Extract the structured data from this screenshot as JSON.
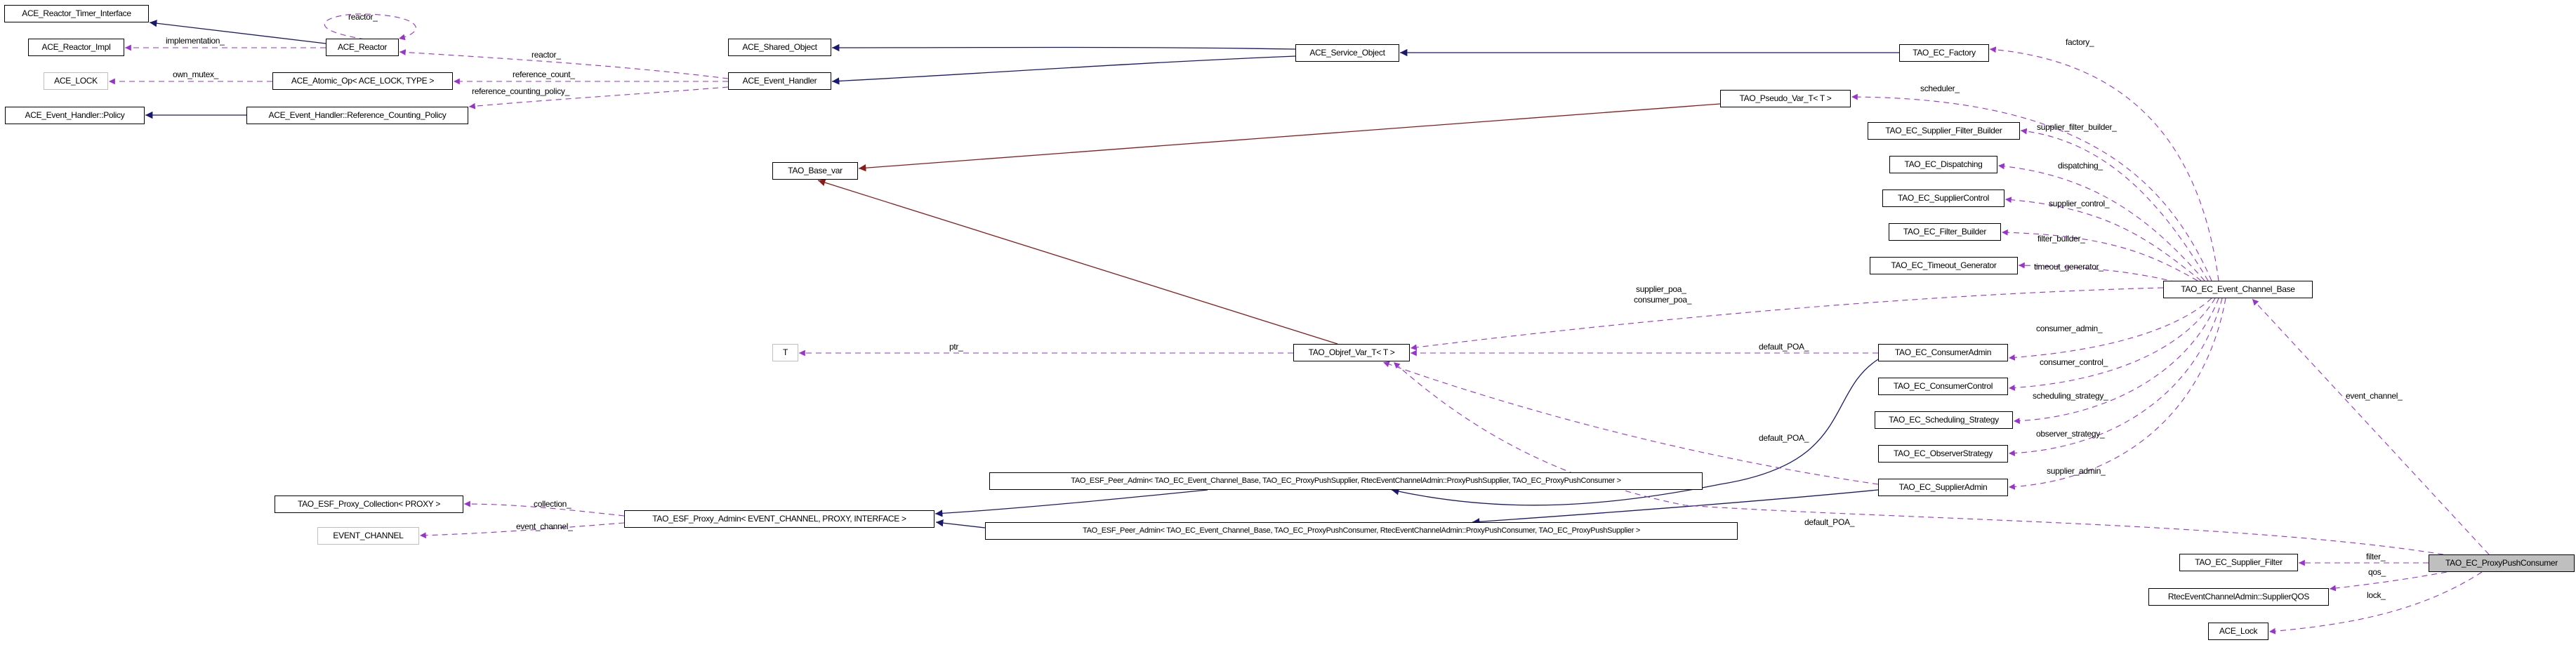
{
  "colors": {
    "inheritance": "#191970",
    "template": "#8b1a1a",
    "usage": "#9a32cd",
    "focus_fill": "#bfbfbf"
  },
  "nodes": {
    "ace_reactor_timer_interface": "ACE_Reactor_Timer_Interface",
    "ace_reactor_impl": "ACE_Reactor_Impl",
    "ace_reactor": "ACE_Reactor",
    "ace_lock_tpl": "ACE_LOCK",
    "ace_atomic_op": "ACE_Atomic_Op< ACE_LOCK, TYPE >",
    "ace_event_handler_policy": "ACE_Event_Handler::Policy",
    "ace_ref_counting_policy": "ACE_Event_Handler::Reference_Counting_Policy",
    "ace_shared_object": "ACE_Shared_Object",
    "ace_event_handler": "ACE_Event_Handler",
    "ace_service_object": "ACE_Service_Object",
    "tao_ec_factory": "TAO_EC_Factory",
    "tao_pseudo_var": "TAO_Pseudo_Var_T< T >",
    "tao_base_var": "TAO_Base_var",
    "tao_supplier_filter_builder": "TAO_EC_Supplier_Filter_Builder",
    "tao_dispatching": "TAO_EC_Dispatching",
    "tao_supplier_control": "TAO_EC_SupplierControl",
    "tao_filter_builder": "TAO_EC_Filter_Builder",
    "tao_timeout_generator": "TAO_EC_Timeout_Generator",
    "tao_event_channel_base": "TAO_EC_Event_Channel_Base",
    "t": "T",
    "tao_objref_var": "TAO_Objref_Var_T< T >",
    "tao_consumer_admin": "TAO_EC_ConsumerAdmin",
    "tao_consumer_control": "TAO_EC_ConsumerControl",
    "tao_scheduling_strategy": "TAO_EC_Scheduling_Strategy",
    "tao_observer_strategy": "TAO_EC_ObserverStrategy",
    "tao_supplier_admin": "TAO_EC_SupplierAdmin",
    "peer_admin_supplier": "TAO_ESF_Peer_Admin< TAO_EC_Event_Channel_Base, TAO_EC_ProxyPushSupplier, RtecEventChannelAdmin::ProxyPushSupplier, TAO_EC_ProxyPushConsumer >",
    "peer_admin_consumer": "TAO_ESF_Peer_Admin< TAO_EC_Event_Channel_Base, TAO_EC_ProxyPushConsumer, RtecEventChannelAdmin::ProxyPushConsumer, TAO_EC_ProxyPushSupplier >",
    "proxy_collection": "TAO_ESF_Proxy_Collection< PROXY >",
    "proxy_admin": "TAO_ESF_Proxy_Admin< EVENT_CHANNEL, PROXY, INTERFACE >",
    "event_channel_tpl": "EVENT_CHANNEL",
    "tao_supplier_filter": "TAO_EC_Supplier_Filter",
    "supplier_qos": "RtecEventChannelAdmin::SupplierQOS",
    "ace_lock": "ACE_Lock",
    "proxy_push_consumer": "TAO_EC_ProxyPushConsumer"
  },
  "edge_labels": {
    "reactor_self": "reactor_",
    "implementation": "implementation_",
    "reactor_eh": "reactor_",
    "own_mutex": "own_mutex_",
    "reference_count": "reference_count_",
    "reference_counting_policy": "reference_counting_policy_",
    "ptr": "ptr_",
    "factory": "factory_",
    "scheduler": "scheduler_",
    "supplier_filter_builder": "supplier_filter_builder_",
    "dispatching": "dispatching_",
    "supplier_control": "supplier_control_",
    "filter_builder": "filter_builder_",
    "timeout_generator": "timeout_generator_",
    "supplier_poa": "supplier_poa_",
    "consumer_poa": "consumer_poa_",
    "default_poa_ca": "default_POA_",
    "consumer_admin": "consumer_admin_",
    "consumer_control": "consumer_control_",
    "scheduling_strategy": "scheduling_strategy_",
    "observer_strategy": "observer_strategy_",
    "supplier_admin": "supplier_admin_",
    "default_poa_sa": "default_POA_",
    "default_poa_ppc": "default_POA_",
    "event_channel_ppc": "event_channel_",
    "filter": "filter_",
    "qos": "qos_",
    "lock": "lock_",
    "collection": "collection_",
    "event_channel_pa": "event_channel_"
  }
}
